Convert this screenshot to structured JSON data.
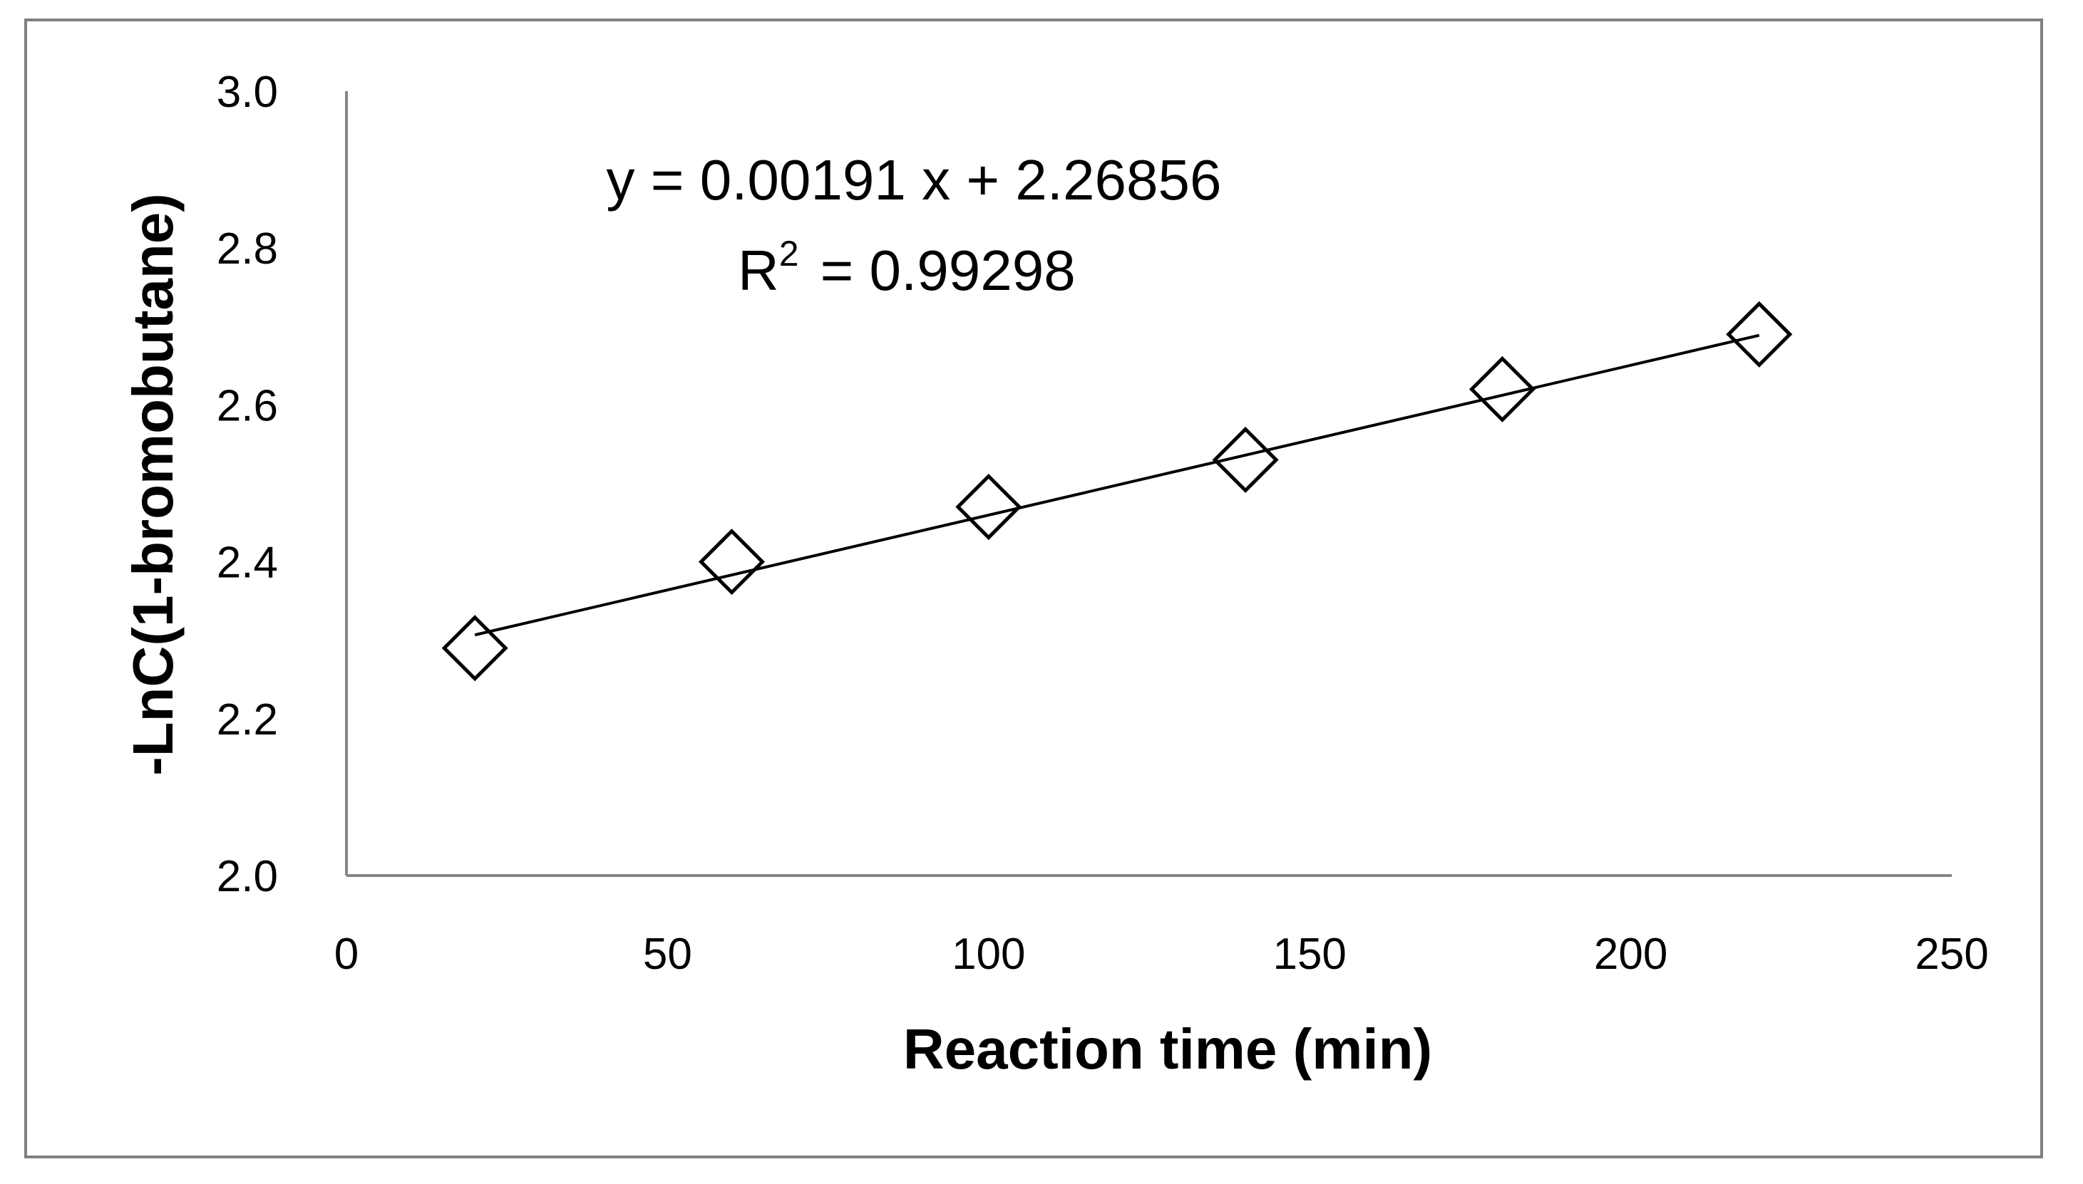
{
  "chart_data": {
    "type": "scatter",
    "title": "",
    "xlabel": "Reaction time (min)",
    "ylabel": "-LnC(1-bromobutane)",
    "xlim": [
      0,
      250
    ],
    "ylim": [
      2.0,
      3.0
    ],
    "x_ticks": [
      0,
      50,
      100,
      150,
      200,
      250
    ],
    "y_ticks": [
      "2.0",
      "2.2",
      "2.4",
      "2.6",
      "2.8",
      "3.0"
    ],
    "grid": false,
    "legend": "none",
    "series": [
      {
        "name": "-LnC(1-bromobutane)",
        "marker": "diamond",
        "x": [
          20,
          60,
          100,
          140,
          180,
          220
        ],
        "y": [
          2.29,
          2.4,
          2.47,
          2.53,
          2.62,
          2.69
        ]
      }
    ],
    "trendline": {
      "type": "linear",
      "slope": 0.00191,
      "intercept": 2.26856,
      "x_range": [
        20,
        220
      ]
    },
    "annotations": {
      "equation": "y = 0.00191 x + 2.26856",
      "r2_prefix": "R",
      "r2_superscript": "2",
      "r2_value": "= 0.99298"
    },
    "colors": {
      "axis": "#868686",
      "frame": "#7f7f7f",
      "marker_fill": "#ffffff",
      "marker_stroke": "#000000",
      "trendline": "#000000"
    }
  }
}
